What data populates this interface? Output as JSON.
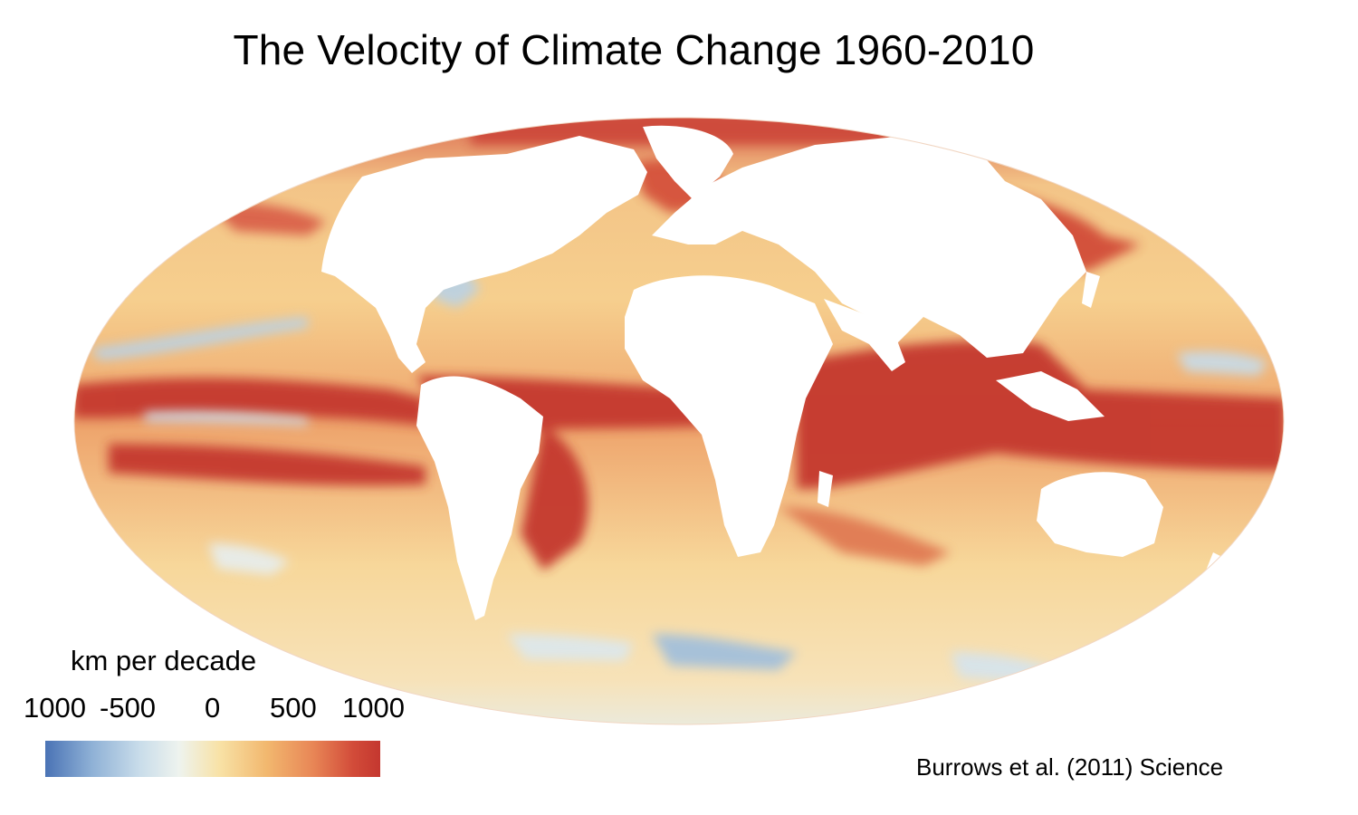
{
  "title": "The Velocity of Climate Change 1960-2010",
  "map": {
    "projection": "Mollweide",
    "variable": "velocity of ocean surface temperature change",
    "land_color": "#ffffff",
    "dominant_color": "#c4372f"
  },
  "legend": {
    "title": "km per decade",
    "tick_labels": [
      "1000",
      "-500",
      "0",
      "500",
      "1000"
    ],
    "colors": [
      "#4a73b5",
      "#c8dcea",
      "#eef3ee",
      "#f8e2a6",
      "#f2b86f",
      "#e88656",
      "#c4372f"
    ]
  },
  "credit": "Burrows et al. (2011) Science"
}
